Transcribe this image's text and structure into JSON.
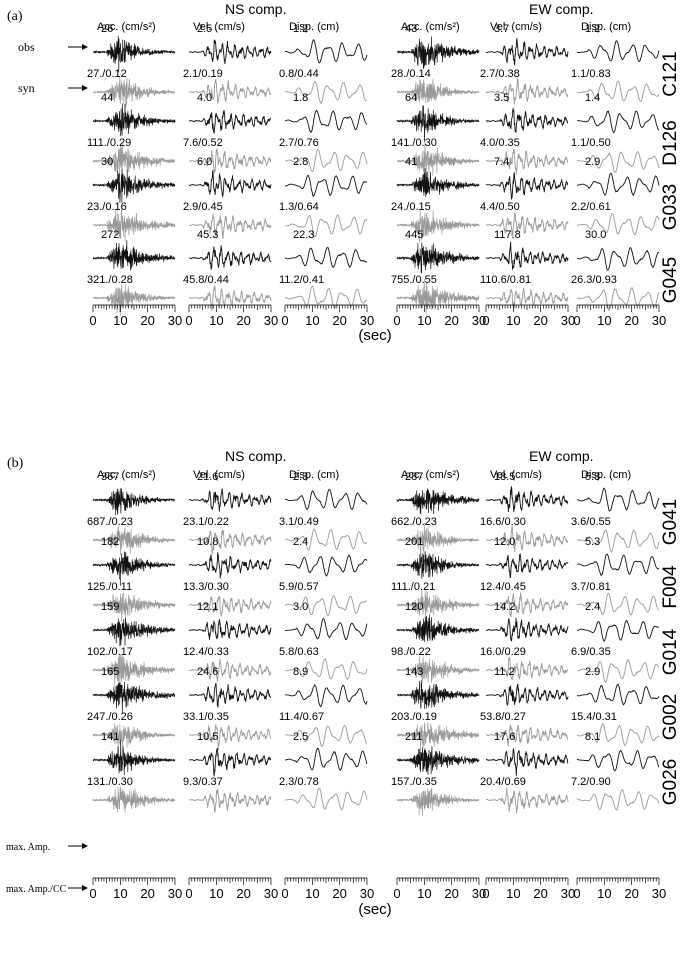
{
  "panels": [
    {
      "label": "(a)",
      "ns_title": "NS comp.",
      "ew_title": "EW comp.",
      "col_headers": [
        "Acc. (cm/s²)",
        "Vel. (cm/s)",
        "Disp. (cm)",
        "Acc. (cm/s²)",
        "Vel. (cm/s)",
        "Disp. (cm)"
      ],
      "legend": [
        {
          "text": "obs",
          "row": "obs"
        },
        {
          "text": "syn",
          "row": "syn"
        }
      ],
      "ticks": [
        "0",
        "10",
        "20",
        "30"
      ],
      "xlabel": "(sec)",
      "stations": [
        {
          "name": "C121",
          "obs": [
            "26",
            "2.5",
            "1.2",
            "43",
            "3.7",
            "1.2"
          ],
          "syn": [
            "27./0.12",
            "2.1/0.19",
            "0.8/0.44",
            "28./0.14",
            "2.7/0.38",
            "1.1/0.83"
          ]
        },
        {
          "name": "D126",
          "obs": [
            "44",
            "4.0",
            "1.8",
            "64",
            "3.5",
            "1.4"
          ],
          "syn": [
            "111./0.29",
            "7.6/0.52",
            "2.7/0.76",
            "141./0.30",
            "4.0/0.35",
            "1.1/0.50"
          ]
        },
        {
          "name": "G033",
          "obs": [
            "30",
            "6.0",
            "2.8",
            "41",
            "7.4",
            "2.9"
          ],
          "syn": [
            "23./0.16",
            "2.9/0.45",
            "1.3/0.64",
            "24./0.15",
            "4.4/0.50",
            "2.2/0.61"
          ]
        },
        {
          "name": "G045",
          "obs": [
            "272",
            "45.3",
            "22.3",
            "445",
            "117.8",
            "30.0"
          ],
          "syn": [
            "321./0.28",
            "45.8/0.44",
            "11.2/0.41",
            "755./0.55",
            "110.6/0.81",
            "26.3/0.93"
          ]
        }
      ]
    },
    {
      "label": "(b)",
      "ns_title": "NS comp.",
      "ew_title": "EW comp.",
      "col_headers": [
        "Acc. (cm/s²)",
        "Vel. (cm/s)",
        "Disp. (cm)",
        "Acc. (cm/s²)",
        "Vel. (cm/s)",
        "Disp. (cm)"
      ],
      "legend": [
        {
          "text": "max. Amp.",
          "row": "obs"
        },
        {
          "text": "max. Amp./CC",
          "row": "syn"
        }
      ],
      "ticks": [
        "0",
        "10",
        "20",
        "30"
      ],
      "xlabel": "(sec)",
      "stations": [
        {
          "name": "G041",
          "obs": [
            "367",
            "21.6",
            "2.3",
            "287",
            "18.5",
            "5.3"
          ],
          "syn": [
            "687./0.23",
            "23.1/0.22",
            "3.1/0.49",
            "662./0.23",
            "16.6/0.30",
            "3.6/0.55"
          ]
        },
        {
          "name": "F004",
          "obs": [
            "182",
            "10.8",
            "2.4",
            "201",
            "12.0",
            "5.3"
          ],
          "syn": [
            "125./0.11",
            "13.3/0.30",
            "5.9/0.57",
            "111./0.21",
            "12.4/0.45",
            "3.7/0.81"
          ]
        },
        {
          "name": "G014",
          "obs": [
            "159",
            "12.1",
            "3.0",
            "120",
            "14.2",
            "2.4"
          ],
          "syn": [
            "102./0.17",
            "12.4/0.33",
            "5.8/0.63",
            "98./0.22",
            "16.0/0.29",
            "6.9/0.35"
          ]
        },
        {
          "name": "G002",
          "obs": [
            "165",
            "24.6",
            "8.9",
            "143",
            "11.2",
            "2.9"
          ],
          "syn": [
            "247./0.26",
            "33.1/0.35",
            "11.4/0.67",
            "203./0.19",
            "53.8/0.27",
            "15.4/0.31"
          ]
        },
        {
          "name": "G026",
          "obs": [
            "141",
            "10.5",
            "2.5",
            "211",
            "17.6",
            "8.1"
          ],
          "syn": [
            "131./0.30",
            "9.3/0.37",
            "2.3/0.78",
            "157./0.35",
            "20.4/0.69",
            "7.2/0.90"
          ]
        }
      ]
    }
  ],
  "colors": {
    "observed": "#111111",
    "synthetic": "#9a9a9a",
    "axis": "#000000"
  }
}
